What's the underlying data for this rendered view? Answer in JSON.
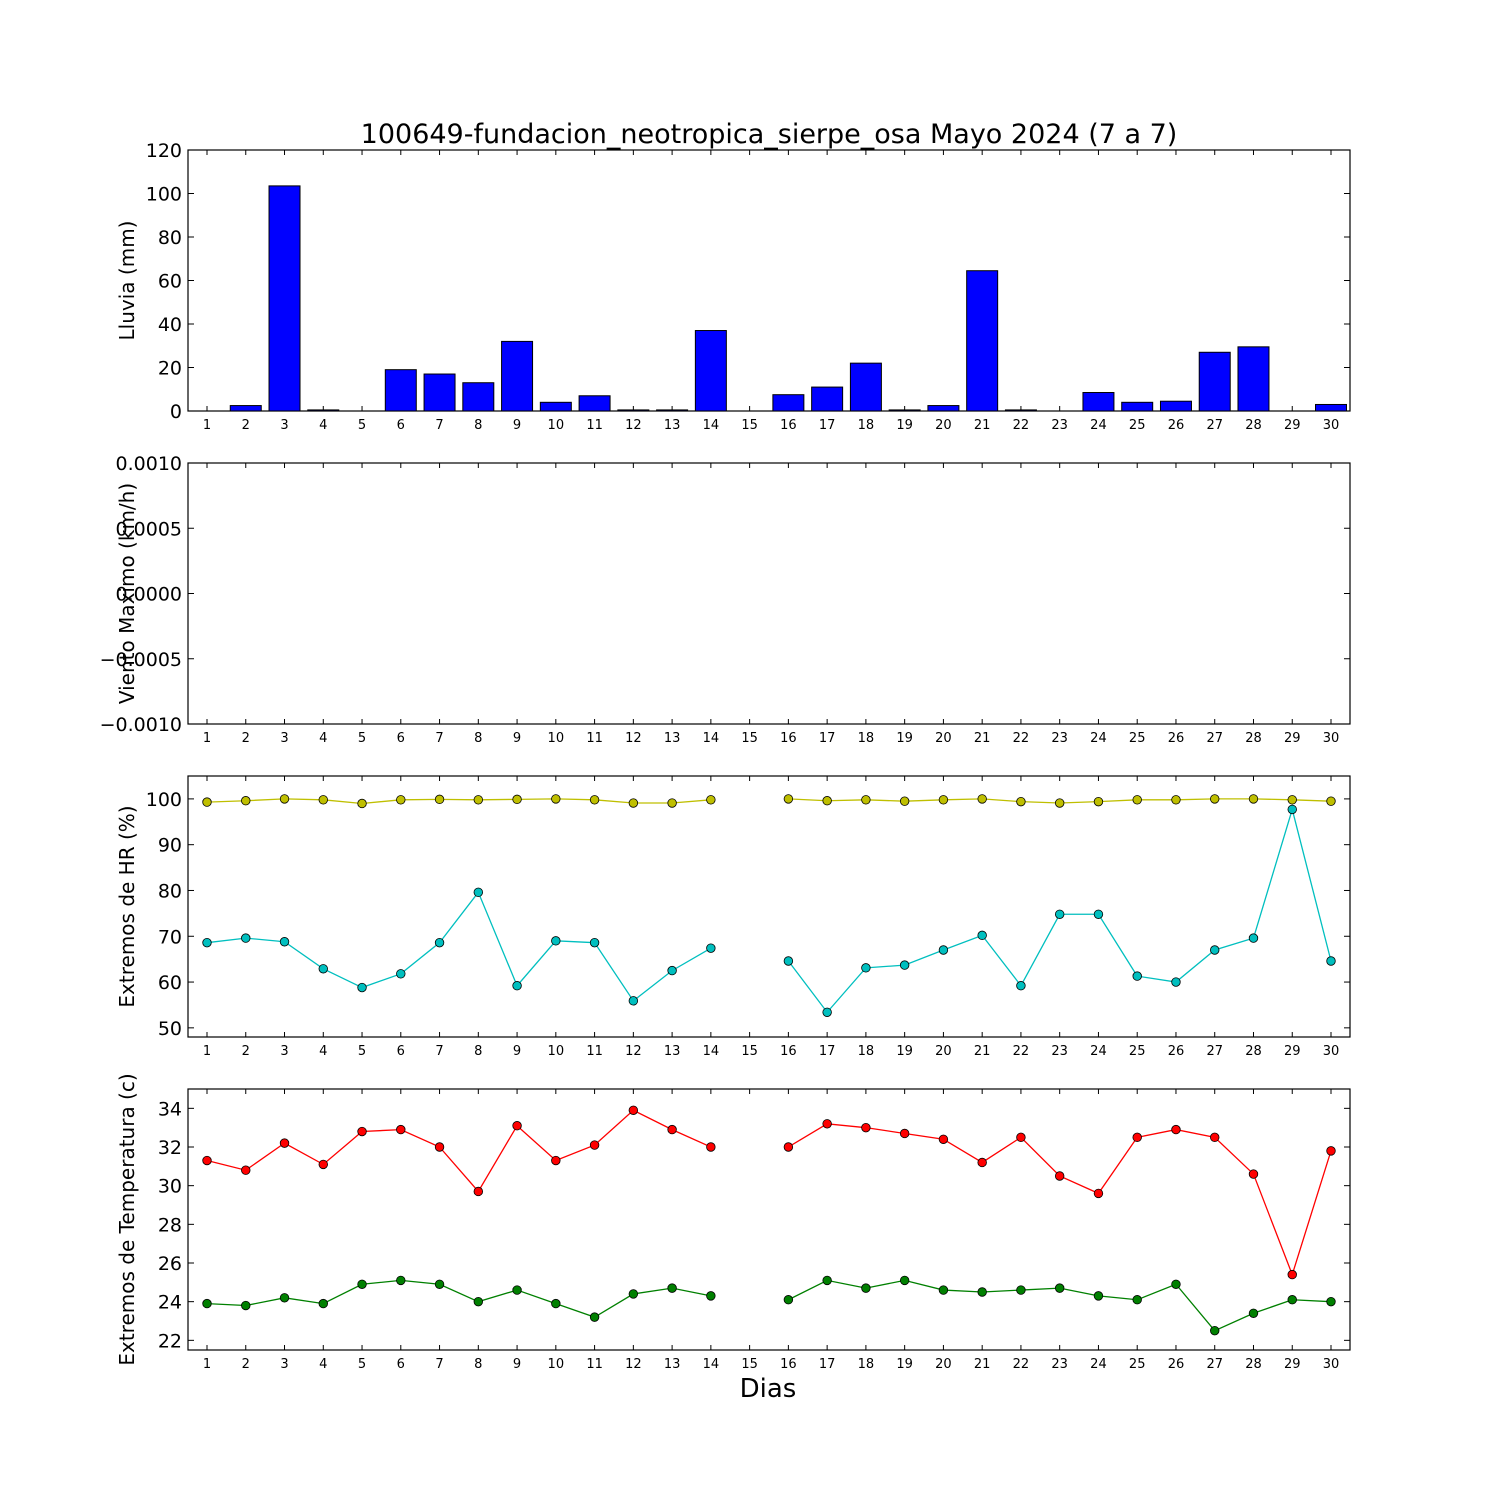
{
  "title": "100649-fundacion_neotropica_sierpe_osa Mayo 2024  (7 a 7)",
  "xlabel": "Dias",
  "colors": {
    "rain": "#0000ff",
    "hr_max": "#bfbf00",
    "hr_min": "#00bfbf",
    "temp_max": "#ff0000",
    "temp_min": "#008000"
  },
  "chart_data": [
    {
      "type": "bar",
      "ylabel": "Lluvia (mm)",
      "ylim": [
        0,
        120
      ],
      "yticks": [
        "0",
        "20",
        "40",
        "60",
        "80",
        "100",
        "120"
      ],
      "categories": [
        "1",
        "2",
        "3",
        "4",
        "5",
        "6",
        "7",
        "8",
        "9",
        "10",
        "11",
        "12",
        "13",
        "14",
        "15",
        "16",
        "17",
        "18",
        "19",
        "20",
        "21",
        "22",
        "23",
        "24",
        "25",
        "26",
        "27",
        "28",
        "29",
        "30"
      ],
      "values": [
        0,
        2.5,
        103.5,
        0.5,
        0,
        19,
        17,
        13,
        32,
        4,
        7,
        0.5,
        0.5,
        37,
        0,
        7.5,
        11,
        22,
        0.5,
        2.5,
        64.5,
        0.5,
        0,
        8.5,
        4,
        4.5,
        27,
        29.5,
        0,
        3
      ]
    },
    {
      "type": "line",
      "ylabel": "Viento Maximo (km/h)",
      "ylim": [
        -0.001,
        0.001
      ],
      "yticks": [
        "−0.0010",
        "−0.0005",
        "0.0000",
        "0.0005",
        "0.0010"
      ],
      "categories": [
        "1",
        "2",
        "3",
        "4",
        "5",
        "6",
        "7",
        "8",
        "9",
        "10",
        "11",
        "12",
        "13",
        "14",
        "15",
        "16",
        "17",
        "18",
        "19",
        "20",
        "21",
        "22",
        "23",
        "24",
        "25",
        "26",
        "27",
        "28",
        "29",
        "30"
      ],
      "series": []
    },
    {
      "type": "line",
      "ylabel": "Extremos de HR (%)",
      "ylim": [
        48,
        105
      ],
      "yticks": [
        "50",
        "60",
        "70",
        "80",
        "90",
        "100"
      ],
      "categories": [
        "1",
        "2",
        "3",
        "4",
        "5",
        "6",
        "7",
        "8",
        "9",
        "10",
        "11",
        "12",
        "13",
        "14",
        "15",
        "16",
        "17",
        "18",
        "19",
        "20",
        "21",
        "22",
        "23",
        "24",
        "25",
        "26",
        "27",
        "28",
        "29",
        "30"
      ],
      "series": [
        {
          "values": [
            99.3,
            99.6,
            100,
            99.8,
            99,
            99.8,
            99.9,
            99.8,
            99.9,
            100,
            99.8,
            99.1,
            99.1,
            99.8,
            null,
            100,
            99.6,
            99.8,
            99.5,
            99.8,
            100,
            99.4,
            99.1,
            99.4,
            99.8,
            99.8,
            100,
            100,
            99.8,
            99.5
          ]
        },
        {
          "values": [
            68.6,
            69.6,
            68.8,
            62.9,
            58.8,
            61.8,
            68.6,
            79.6,
            59.2,
            69,
            68.6,
            55.9,
            62.5,
            67.4,
            null,
            64.6,
            53.4,
            63.1,
            63.7,
            67,
            70.2,
            59.2,
            74.8,
            74.8,
            61.3,
            60,
            67,
            69.6,
            97.7,
            64.6
          ]
        }
      ]
    },
    {
      "type": "line",
      "ylabel": "Extremos de Temperatura (c)",
      "ylim": [
        21.5,
        35
      ],
      "yticks": [
        "22",
        "24",
        "26",
        "28",
        "30",
        "32",
        "34"
      ],
      "categories": [
        "1",
        "2",
        "3",
        "4",
        "5",
        "6",
        "7",
        "8",
        "9",
        "10",
        "11",
        "12",
        "13",
        "14",
        "15",
        "16",
        "17",
        "18",
        "19",
        "20",
        "21",
        "22",
        "23",
        "24",
        "25",
        "26",
        "27",
        "28",
        "29",
        "30"
      ],
      "series": [
        {
          "values": [
            31.3,
            30.8,
            32.2,
            31.1,
            32.8,
            32.9,
            32,
            29.7,
            33.1,
            31.3,
            32.1,
            33.9,
            32.9,
            32,
            null,
            32,
            33.2,
            33,
            32.7,
            32.4,
            31.2,
            32.5,
            30.5,
            29.6,
            32.5,
            32.9,
            32.5,
            30.6,
            25.4,
            31.8
          ]
        },
        {
          "values": [
            23.9,
            23.8,
            24.2,
            23.9,
            24.9,
            25.1,
            24.9,
            24,
            24.6,
            23.9,
            23.2,
            24.4,
            24.7,
            24.3,
            null,
            24.1,
            25.1,
            24.7,
            25.1,
            24.6,
            24.5,
            24.6,
            24.7,
            24.3,
            24.1,
            24.9,
            22.5,
            23.4,
            24.1,
            24
          ]
        }
      ]
    }
  ]
}
